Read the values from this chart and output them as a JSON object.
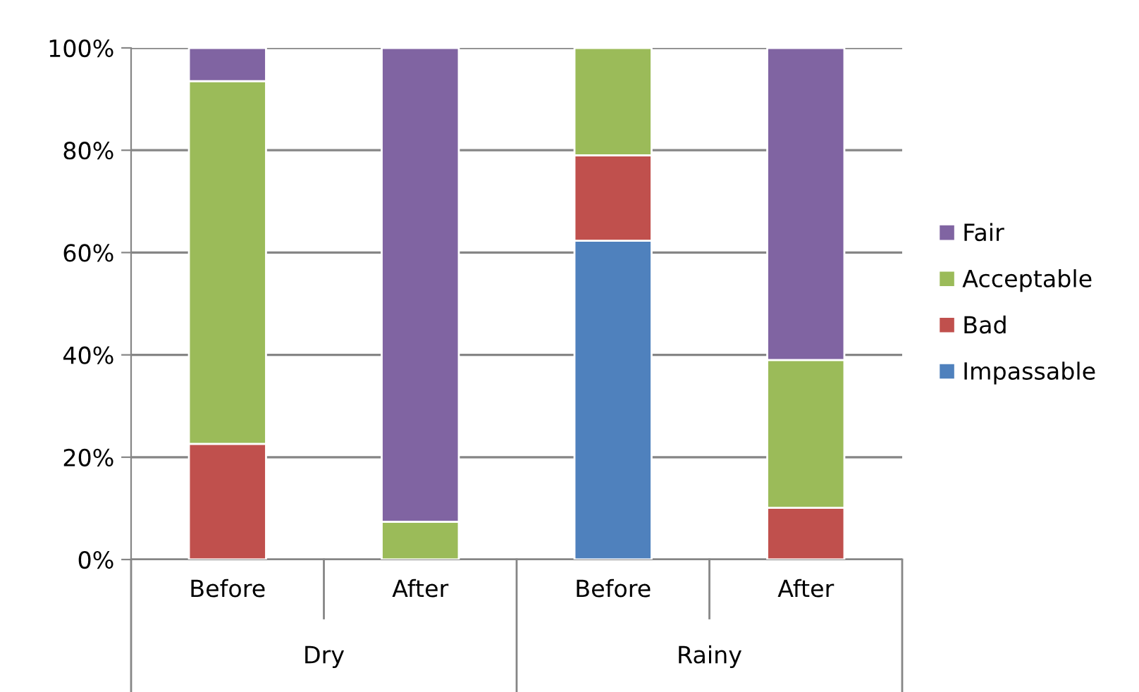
{
  "chart_data": {
    "type": "bar",
    "stacked": true,
    "categories": [
      "Before",
      "After",
      "Before",
      "After"
    ],
    "series": [
      {
        "name": "Impassable",
        "color": "#4f81bd",
        "values": [
          0,
          0,
          62.3,
          0
        ]
      },
      {
        "name": "Bad",
        "color": "#c0504d",
        "values": [
          22.6,
          0,
          16.7,
          10.1
        ]
      },
      {
        "name": "Acceptable",
        "color": "#9bbb59",
        "values": [
          70.9,
          7.4,
          21.0,
          28.9
        ]
      },
      {
        "name": "Fair",
        "color": "#8064a2",
        "values": [
          6.5,
          92.6,
          0,
          61.0
        ]
      }
    ],
    "ylim": [
      0,
      100
    ],
    "yticks": [
      {
        "value": 0,
        "label": "0%"
      },
      {
        "value": 20,
        "label": "20%"
      },
      {
        "value": 40,
        "label": "40%"
      },
      {
        "value": 60,
        "label": "60%"
      },
      {
        "value": 80,
        "label": "80%"
      },
      {
        "value": 100,
        "label": "100%"
      }
    ],
    "grid": "y",
    "legend": "right",
    "annotations": [
      "Dry",
      "Rainy"
    ]
  }
}
